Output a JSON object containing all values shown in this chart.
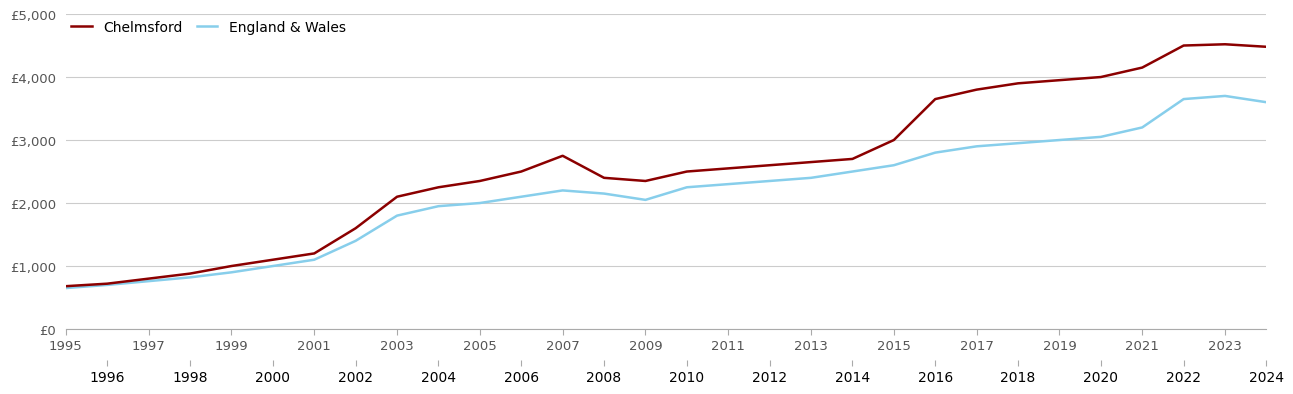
{
  "chelmsford_label": "Chelmsford",
  "england_wales_label": "England & Wales",
  "chelmsford_color": "#8B0000",
  "england_wales_color": "#87CEEB",
  "years": [
    1995,
    1996,
    1997,
    1998,
    1999,
    2000,
    2001,
    2002,
    2003,
    2004,
    2005,
    2006,
    2007,
    2008,
    2009,
    2010,
    2011,
    2012,
    2013,
    2014,
    2015,
    2016,
    2017,
    2018,
    2019,
    2020,
    2021,
    2022,
    2023,
    2024
  ],
  "chelmsford_values": [
    680,
    720,
    800,
    880,
    1000,
    1100,
    1200,
    1600,
    2100,
    2250,
    2350,
    2500,
    2750,
    2400,
    2350,
    2500,
    2550,
    2600,
    2650,
    2700,
    3000,
    3650,
    3800,
    3900,
    3950,
    4000,
    4150,
    4500,
    4520,
    4480
  ],
  "england_wales_values": [
    650,
    700,
    760,
    820,
    900,
    1000,
    1100,
    1400,
    1800,
    1950,
    2000,
    2100,
    2200,
    2150,
    2050,
    2250,
    2300,
    2350,
    2400,
    2500,
    2600,
    2800,
    2900,
    2950,
    3000,
    3050,
    3200,
    3650,
    3700,
    3600
  ],
  "ylim": [
    0,
    5000
  ],
  "yticks": [
    0,
    1000,
    2000,
    3000,
    4000,
    5000
  ],
  "ytick_labels": [
    "£0",
    "£1,000",
    "£2,000",
    "£3,000",
    "£4,000",
    "£5,000"
  ],
  "background_color": "#ffffff",
  "grid_color": "#cccccc",
  "line_width": 1.8,
  "tick_fontsize": 9.5,
  "legend_fontsize": 10
}
